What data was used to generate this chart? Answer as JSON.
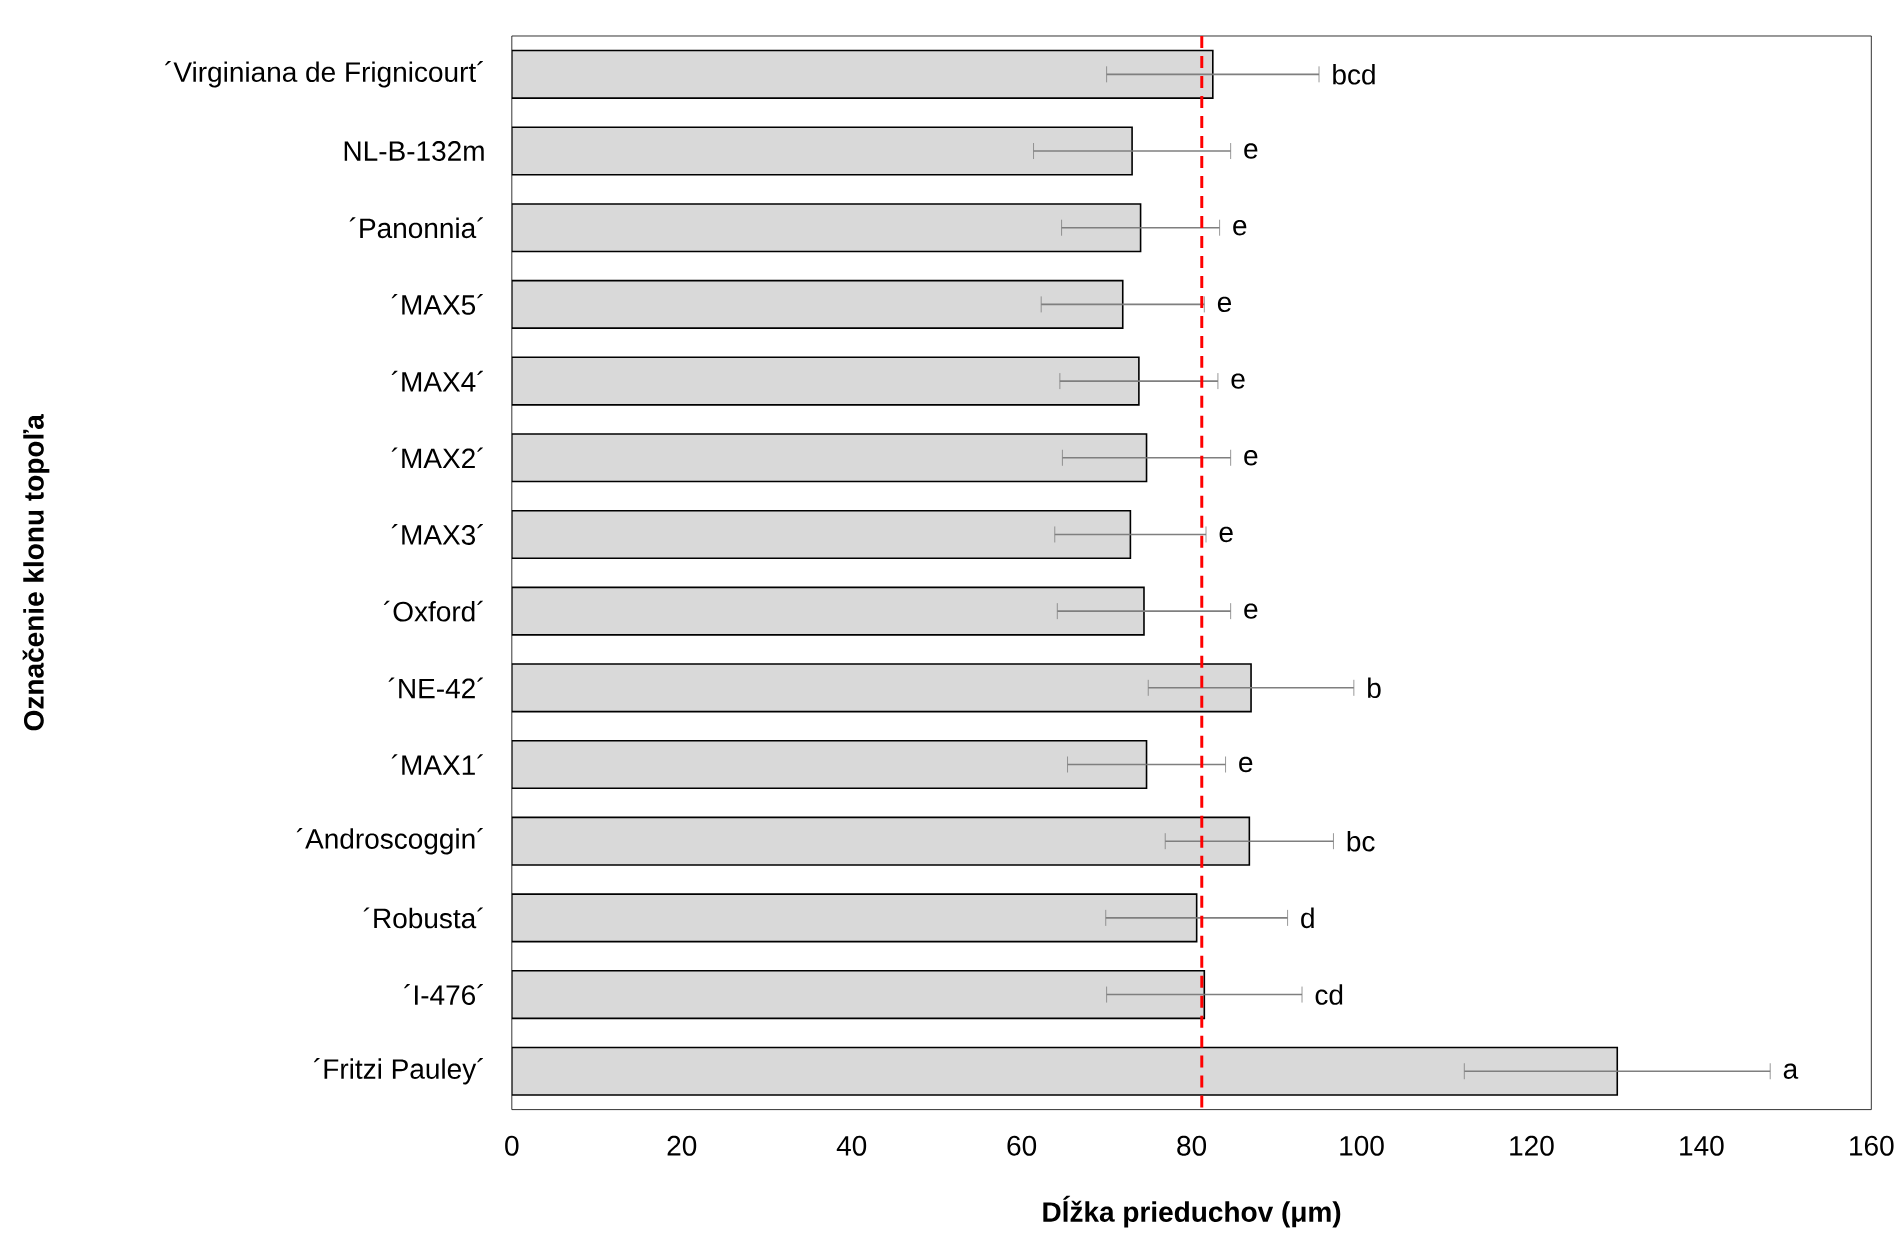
{
  "chart_data": {
    "type": "bar",
    "orientation": "horizontal",
    "xlabel": "Dĺžka prieduchov (μm)",
    "ylabel": "Označenie klonu topoľa",
    "categories": [
      "´Virginiana de Frignicourt´",
      "NL-B-132m",
      "´Panonnia´",
      "´MAX5´",
      "´MAX4´",
      "´MAX2´",
      "´MAX3´",
      "´Oxford´",
      "´NE-42´",
      "´MAX1´",
      "´Androscoggin´",
      "´Robusta´",
      "´I-476´",
      "´Fritzi Pauley´"
    ],
    "values": [
      82.5,
      73.0,
      74.0,
      71.9,
      73.8,
      74.7,
      72.8,
      74.4,
      87.0,
      74.7,
      86.8,
      80.6,
      81.5,
      130.1
    ],
    "errors": [
      12.5,
      11.6,
      9.3,
      9.6,
      9.3,
      9.9,
      8.9,
      10.2,
      12.1,
      9.3,
      9.9,
      10.7,
      11.5,
      18.0
    ],
    "annotations": [
      "bcd",
      "e",
      "e",
      "e",
      "e",
      "e",
      "e",
      "e",
      "b",
      "e",
      "bc",
      "d",
      "cd",
      "a"
    ],
    "color": "#d9d9d9",
    "xlim": [
      0,
      160
    ],
    "xticks": [
      0,
      20,
      40,
      60,
      80,
      100,
      120,
      140,
      160
    ],
    "ref_lines": [
      {
        "axis": "x",
        "value": 81.2,
        "color": "#ff0000",
        "line_style": "dashed"
      }
    ],
    "grid": false
  }
}
